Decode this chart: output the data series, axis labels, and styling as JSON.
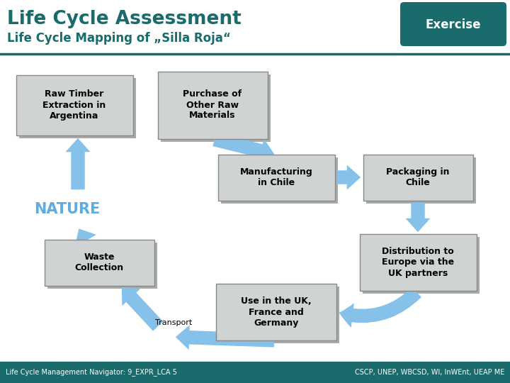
{
  "title_main": "Life Cycle Assessment",
  "title_sub": "Life Cycle Mapping of „Silla Roja“",
  "exercise_label": "Exercise",
  "teal_color": "#1a6b6b",
  "arrow_color": "#85c1e9",
  "box_bg": "#d0d3d4",
  "box_shadow": "#aaaaaa",
  "footer_text": "Life Cycle Management Navigator: 9_EXPR_LCA 5",
  "footer_right": "CSCP, UNEP, WBCSD, WI, InWEnt, UEAP ME",
  "nature_color": "#5dade2",
  "separator_color": "#2e86c1"
}
